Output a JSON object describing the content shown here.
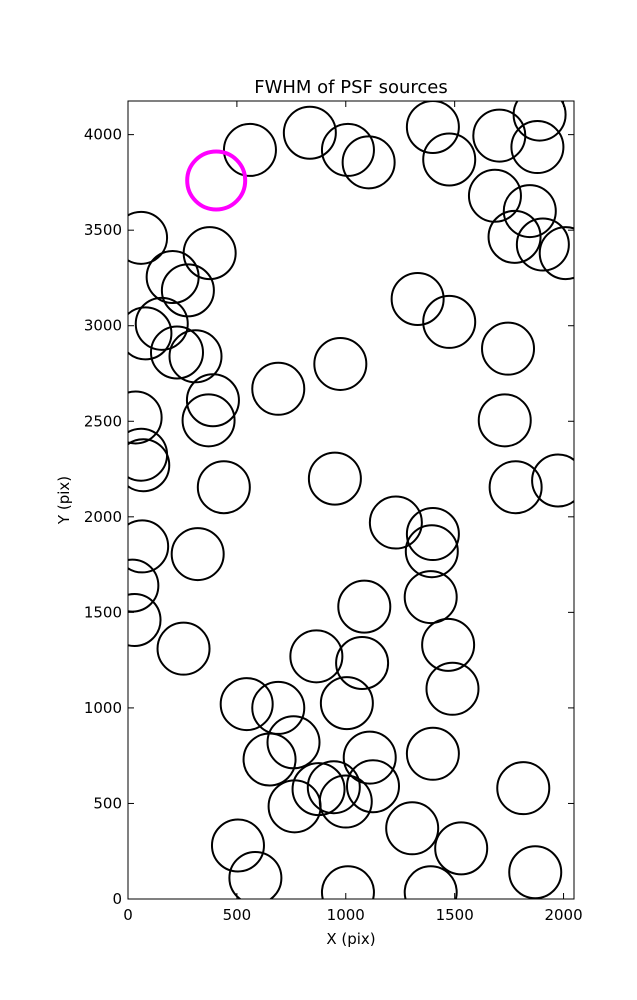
{
  "chart_data": {
    "type": "scatter",
    "title": "FWHM of PSF sources",
    "xlabel": "X (pix)",
    "ylabel": "Y (pix)",
    "xlim": [
      0,
      2048
    ],
    "ylim": [
      0,
      4176
    ],
    "xticks": [
      0,
      500,
      1000,
      1500,
      2000
    ],
    "yticks": [
      0,
      500,
      1000,
      1500,
      2000,
      2500,
      3000,
      3500,
      4000
    ],
    "grid": false,
    "colors": {
      "source": "#000000",
      "highlight": "#ff00ff"
    },
    "highlight": {
      "x": 405,
      "y": 3760
    },
    "sources": [
      {
        "x": 560,
        "y": 3920
      },
      {
        "x": 835,
        "y": 4010
      },
      {
        "x": 1010,
        "y": 3920
      },
      {
        "x": 1105,
        "y": 3855
      },
      {
        "x": 1400,
        "y": 4040
      },
      {
        "x": 1475,
        "y": 3870
      },
      {
        "x": 1705,
        "y": 3995
      },
      {
        "x": 1890,
        "y": 4105
      },
      {
        "x": 1880,
        "y": 3935
      },
      {
        "x": 1685,
        "y": 3680
      },
      {
        "x": 1775,
        "y": 3465
      },
      {
        "x": 1845,
        "y": 3600
      },
      {
        "x": 1905,
        "y": 3425
      },
      {
        "x": 2010,
        "y": 3380
      },
      {
        "x": 60,
        "y": 3460
      },
      {
        "x": 205,
        "y": 3255
      },
      {
        "x": 375,
        "y": 3380
      },
      {
        "x": 275,
        "y": 3185
      },
      {
        "x": 155,
        "y": 3010
      },
      {
        "x": 80,
        "y": 2960
      },
      {
        "x": 225,
        "y": 2860
      },
      {
        "x": 310,
        "y": 2840
      },
      {
        "x": 390,
        "y": 2610
      },
      {
        "x": 370,
        "y": 2505
      },
      {
        "x": 35,
        "y": 2520
      },
      {
        "x": 60,
        "y": 2325
      },
      {
        "x": 70,
        "y": 2270
      },
      {
        "x": 440,
        "y": 2155
      },
      {
        "x": 690,
        "y": 2670
      },
      {
        "x": 975,
        "y": 2800
      },
      {
        "x": 950,
        "y": 2200
      },
      {
        "x": 1330,
        "y": 3140
      },
      {
        "x": 1475,
        "y": 3020
      },
      {
        "x": 1745,
        "y": 2880
      },
      {
        "x": 1730,
        "y": 2505
      },
      {
        "x": 1780,
        "y": 2155
      },
      {
        "x": 1975,
        "y": 2190
      },
      {
        "x": 65,
        "y": 1845
      },
      {
        "x": 320,
        "y": 1805
      },
      {
        "x": 20,
        "y": 1640
      },
      {
        "x": 30,
        "y": 1460
      },
      {
        "x": 255,
        "y": 1310
      },
      {
        "x": 1230,
        "y": 1970
      },
      {
        "x": 1400,
        "y": 1910
      },
      {
        "x": 1395,
        "y": 1820
      },
      {
        "x": 1390,
        "y": 1580
      },
      {
        "x": 1085,
        "y": 1530
      },
      {
        "x": 1470,
        "y": 1330
      },
      {
        "x": 865,
        "y": 1270
      },
      {
        "x": 1075,
        "y": 1235
      },
      {
        "x": 545,
        "y": 1020
      },
      {
        "x": 690,
        "y": 1000
      },
      {
        "x": 1005,
        "y": 1025
      },
      {
        "x": 1490,
        "y": 1100
      },
      {
        "x": 760,
        "y": 820
      },
      {
        "x": 1110,
        "y": 740
      },
      {
        "x": 1400,
        "y": 760
      },
      {
        "x": 650,
        "y": 730
      },
      {
        "x": 875,
        "y": 575
      },
      {
        "x": 945,
        "y": 585
      },
      {
        "x": 1125,
        "y": 590
      },
      {
        "x": 765,
        "y": 485
      },
      {
        "x": 1000,
        "y": 510
      },
      {
        "x": 1815,
        "y": 580
      },
      {
        "x": 1305,
        "y": 370
      },
      {
        "x": 1530,
        "y": 265
      },
      {
        "x": 505,
        "y": 280
      },
      {
        "x": 585,
        "y": 110
      },
      {
        "x": 1010,
        "y": 35
      },
      {
        "x": 1390,
        "y": 35
      },
      {
        "x": 1870,
        "y": 140
      }
    ]
  }
}
